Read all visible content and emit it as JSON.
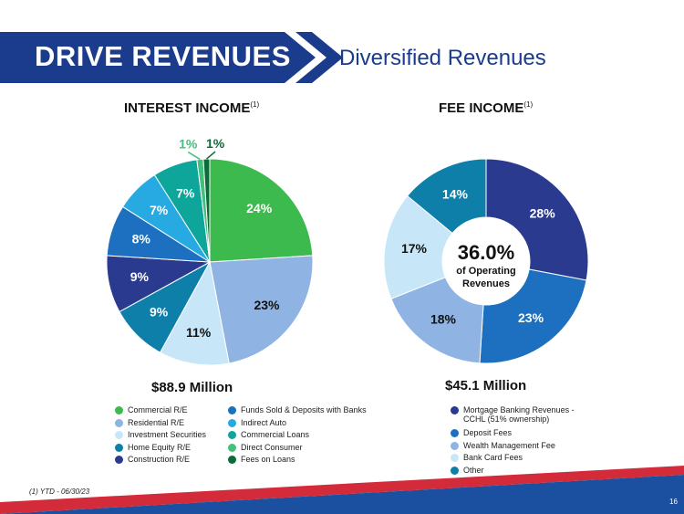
{
  "header": {
    "title": "DRIVE REVENUES",
    "subtitle": "Diversified Revenues",
    "colors": {
      "banner": "#1b3c8c",
      "arrow": "#1b3c8c"
    }
  },
  "chart_data": [
    {
      "type": "pie",
      "title": "INTEREST INCOME",
      "title_superscript": "(1)",
      "total_label": "$88.9 Million",
      "categories": [
        "Commercial R/E",
        "Residential R/E",
        "Investment Securities",
        "Home Equity R/E",
        "Construction R/E",
        "Funds Sold & Deposits with Banks",
        "Indirect Auto",
        "Commercial Loans",
        "Direct Consumer",
        "Fees on Loans"
      ],
      "values": [
        24,
        23,
        11,
        9,
        9,
        8,
        7,
        7,
        1,
        1
      ],
      "data_labels": [
        "24%",
        "23%",
        "11%",
        "9%",
        "9%",
        "8%",
        "7%",
        "7%",
        "1%",
        "1%"
      ],
      "colors": [
        "#3dba4e",
        "#8fb4e3",
        "#c7e7f8",
        "#0e7fa8",
        "#2a3a8f",
        "#1d6fbf",
        "#27a9e1",
        "#0ea59a",
        "#44c07a",
        "#0c6b3a"
      ],
      "legend_position": "bottom"
    },
    {
      "type": "pie",
      "subtype": "donut",
      "title": "FEE INCOME",
      "title_superscript": "(1)",
      "total_label": "$45.1 Million",
      "center_value": "36.0%",
      "center_text": [
        "of Operating",
        "Revenues"
      ],
      "categories": [
        "Mortgage Banking Revenues -",
        "Deposit Fees",
        "Wealth Management Fee",
        "Bank Card Fees",
        "Other"
      ],
      "category_sublabels": [
        "CCHL (51% ownership)",
        "",
        "",
        "",
        ""
      ],
      "values": [
        28,
        23,
        18,
        17,
        14
      ],
      "data_labels": [
        "28%",
        "23%",
        "18%",
        "17%",
        "14%"
      ],
      "colors": [
        "#2a3a8f",
        "#1d6fbf",
        "#8fb4e3",
        "#c7e7f8",
        "#0e7fa8"
      ],
      "legend_position": "bottom"
    }
  ],
  "footer": {
    "footnote": "(1) YTD - 06/30/23",
    "page_number": "16",
    "colors": {
      "red": "#d42b3a",
      "blue": "#1b4fa0"
    }
  }
}
